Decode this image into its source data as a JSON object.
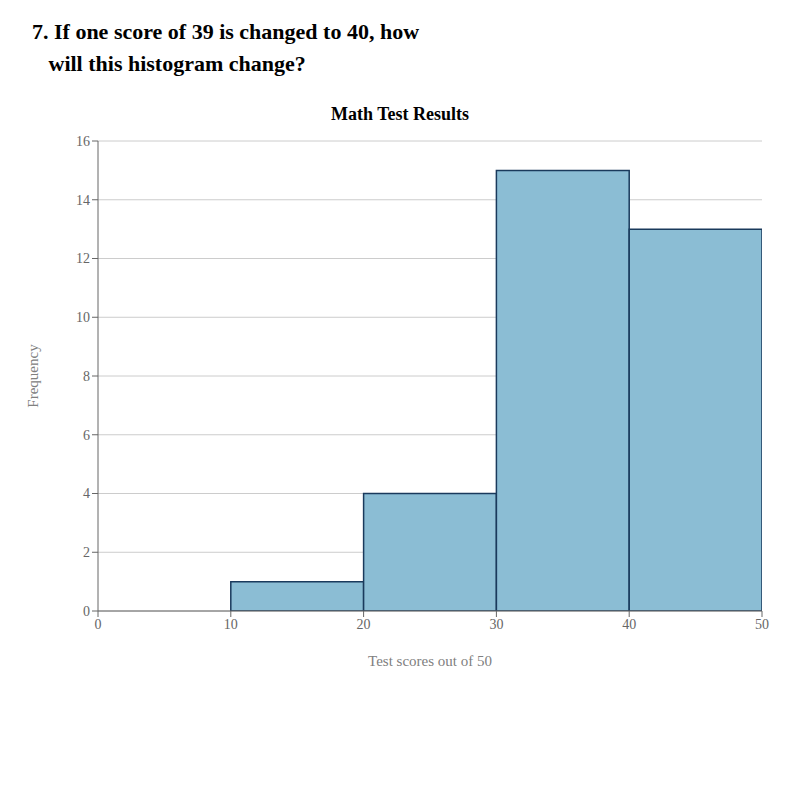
{
  "chart_data": {
    "type": "histogram",
    "title": "Math Test Results",
    "annotations": [
      "7. If one score of 39 is changed to 40, how",
      "   will this histogram change?"
    ],
    "xlabel": "Test scores out of 50",
    "ylabel": "Frequency",
    "bins": [
      10,
      20,
      30,
      40,
      50
    ],
    "values": [
      1,
      4,
      15,
      13
    ],
    "color": "#8bbdd4",
    "xlim": [
      0,
      50
    ],
    "xticks": [
      0,
      10,
      20,
      30,
      40,
      50
    ],
    "ylim": [
      0,
      16
    ],
    "yticks": [
      0,
      2,
      4,
      6,
      8,
      10,
      12,
      14,
      16
    ],
    "grid": true
  }
}
